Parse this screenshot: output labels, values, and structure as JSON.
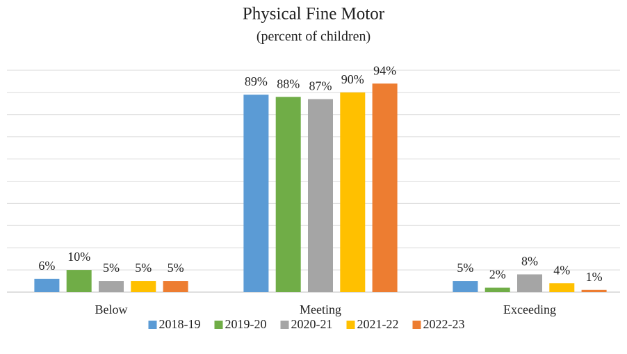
{
  "chart_data": {
    "type": "bar",
    "title": "Physical Fine Motor",
    "subtitle": "(percent of children)",
    "categories": [
      "Below",
      "Meeting",
      "Exceeding"
    ],
    "series": [
      {
        "name": "2018-19",
        "color": "#5b9bd5",
        "values": [
          6,
          89,
          5
        ],
        "value_labels": [
          "6%",
          "89%",
          "5%"
        ]
      },
      {
        "name": "2019-20",
        "color": "#70ad47",
        "values": [
          10,
          88,
          2
        ],
        "value_labels": [
          "10%",
          "88%",
          "2%"
        ]
      },
      {
        "name": "2020-21",
        "color": "#a5a5a5",
        "values": [
          5,
          87,
          8
        ],
        "value_labels": [
          "5%",
          "87%",
          "8%"
        ]
      },
      {
        "name": "2021-22",
        "color": "#ffc000",
        "values": [
          5,
          90,
          4
        ],
        "value_labels": [
          "5%",
          "90%",
          "4%"
        ]
      },
      {
        "name": "2022-23",
        "color": "#ed7d31",
        "values": [
          5,
          94,
          1
        ],
        "value_labels": [
          "5%",
          "94%",
          "1%"
        ]
      }
    ],
    "ylim": [
      0,
      100
    ],
    "yticks": [
      0,
      10,
      20,
      30,
      40,
      50,
      60,
      70,
      80,
      90,
      100
    ],
    "grid": true,
    "legend": "bottom"
  }
}
